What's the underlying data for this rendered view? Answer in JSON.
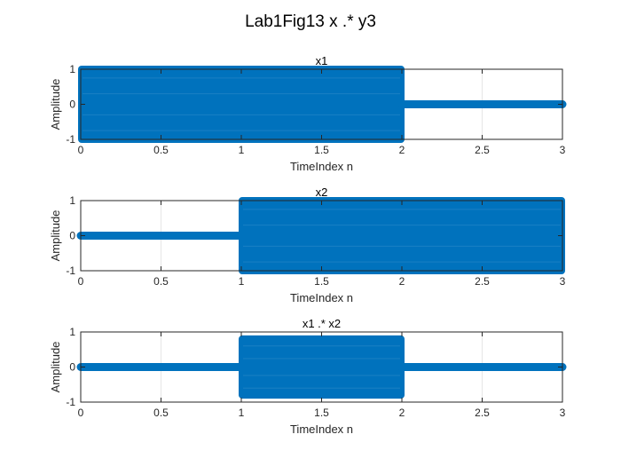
{
  "figure": {
    "title": "Lab1Fig13 x .* y3",
    "colors": {
      "background": "#ffffff",
      "series": "#0072BD",
      "grid": "#e6e6e6",
      "axis": "#262626"
    }
  },
  "chart_data": [
    {
      "type": "scatter",
      "title": "x1",
      "xlabel": "TimeIndex n",
      "ylabel": "Amplitude",
      "xlim": [
        0,
        3
      ],
      "ylim": [
        -1,
        1
      ],
      "xticks": [
        "0",
        "0.5",
        "1",
        "1.5",
        "2",
        "2.5",
        "3"
      ],
      "yticks": [
        "-1",
        "0",
        "1"
      ],
      "grid": true,
      "series": [
        {
          "segments": [
            {
              "x": [
                0,
                2
              ],
              "amplitude": 1
            },
            {
              "x": [
                2,
                3
              ],
              "amplitude": 0
            }
          ]
        }
      ]
    },
    {
      "type": "scatter",
      "title": "x2",
      "xlabel": "TimeIndex n",
      "ylabel": "Amplitude",
      "xlim": [
        0,
        3
      ],
      "ylim": [
        -1,
        1
      ],
      "xticks": [
        "0",
        "0.5",
        "1",
        "1.5",
        "2",
        "2.5",
        "3"
      ],
      "yticks": [
        "-1",
        "0",
        "1"
      ],
      "grid": true,
      "series": [
        {
          "segments": [
            {
              "x": [
                0,
                1
              ],
              "amplitude": 0
            },
            {
              "x": [
                1,
                3
              ],
              "amplitude": 1
            }
          ]
        }
      ]
    },
    {
      "type": "scatter",
      "title": "x1 .* x2",
      "xlabel": "TimeIndex n",
      "ylabel": "Amplitude",
      "xlim": [
        0,
        3
      ],
      "ylim": [
        -1,
        1
      ],
      "xticks": [
        "0",
        "0.5",
        "1",
        "1.5",
        "2",
        "2.5",
        "3"
      ],
      "yticks": [
        "-1",
        "0",
        "1"
      ],
      "grid": true,
      "series": [
        {
          "segments": [
            {
              "x": [
                0,
                1
              ],
              "amplitude": 0
            },
            {
              "x": [
                1,
                2
              ],
              "amplitude": 0.8
            },
            {
              "x": [
                2,
                3
              ],
              "amplitude": 0
            }
          ]
        }
      ]
    }
  ]
}
